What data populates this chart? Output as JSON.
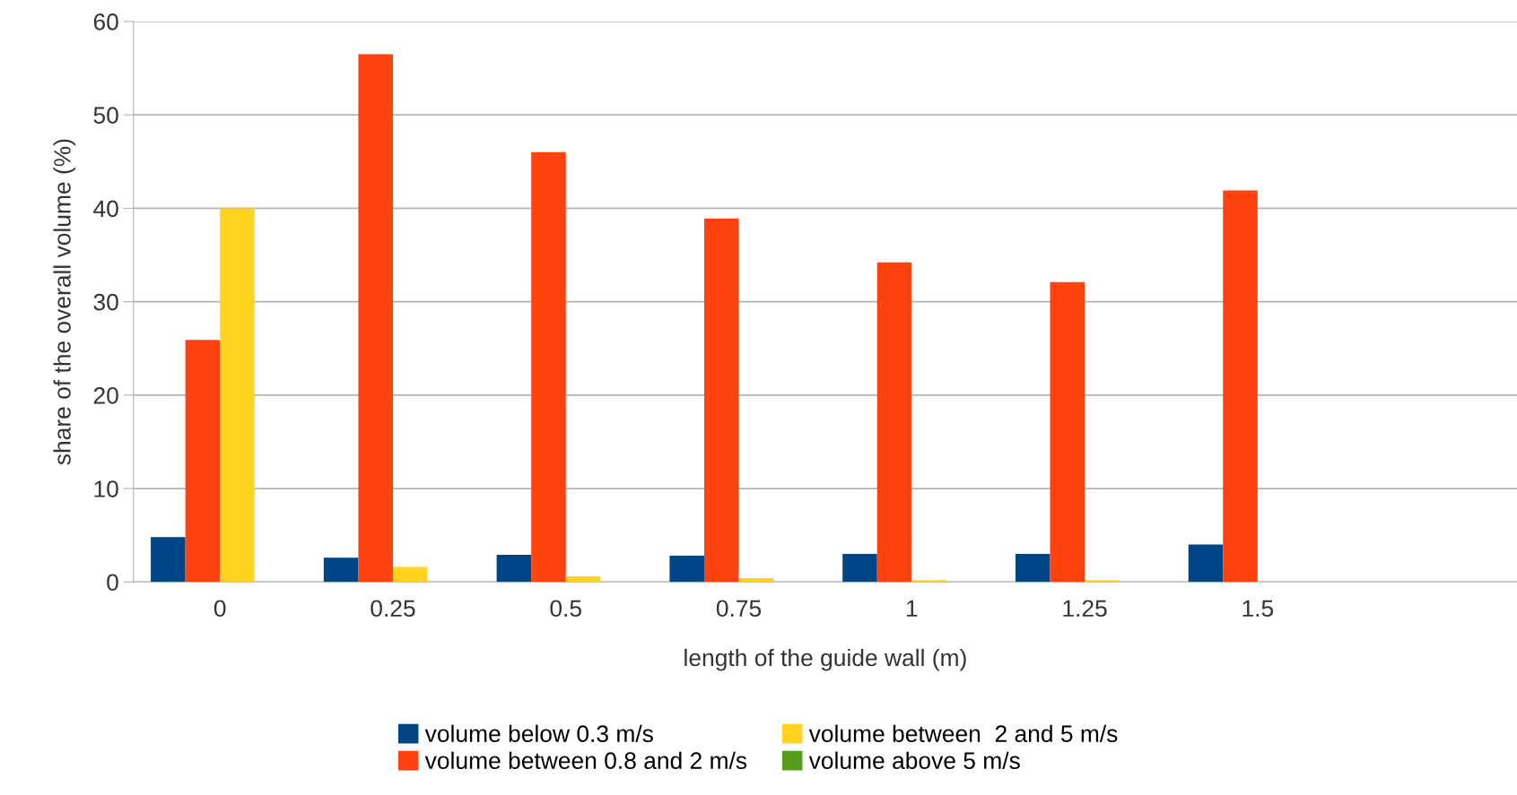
{
  "chart_data": {
    "type": "bar",
    "xlabel": "length of the guide wall (m)",
    "ylabel": "share of the overall volume (%)",
    "categories": [
      "0",
      "0.25",
      "0.5",
      "0.75",
      "1",
      "1.25",
      "1.5",
      null
    ],
    "series": [
      {
        "name": "volume below 0.3 m/s",
        "color": "#004586",
        "values": [
          4.8,
          2.6,
          2.9,
          2.8,
          3.0,
          3.0,
          4.0,
          null
        ]
      },
      {
        "name": "volume between 0.8 and 2 m/s",
        "color": "#ff420e",
        "values": [
          25.9,
          56.5,
          46.0,
          38.9,
          34.2,
          32.1,
          41.9,
          null
        ]
      },
      {
        "name": "volume between  2 and 5 m/s",
        "color": "#ffd320",
        "values": [
          40.0,
          1.6,
          0.6,
          0.4,
          0.2,
          0.2,
          0,
          null
        ]
      },
      {
        "name": "volume above 5 m/s",
        "color": "#579d1c",
        "values": [
          0,
          0,
          0,
          0,
          0,
          0,
          0,
          null
        ]
      }
    ],
    "ylim": [
      0,
      60
    ],
    "yticks": [
      0,
      10,
      20,
      30,
      40,
      50,
      60
    ],
    "grid": "y",
    "legend": "bottom"
  }
}
